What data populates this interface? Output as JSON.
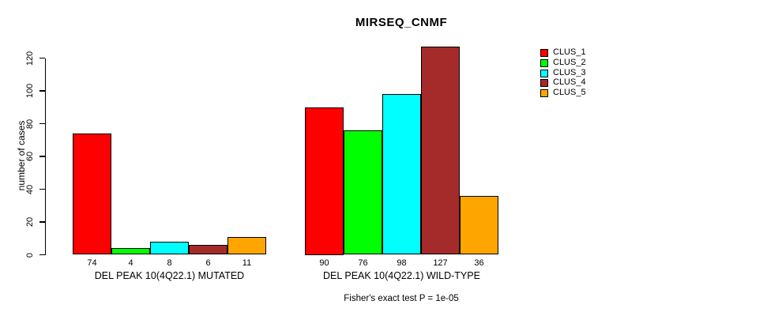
{
  "chart_data": {
    "type": "bar",
    "title": "MIRSEQ_CNMF",
    "ylabel": "number of cases",
    "xlabel": "",
    "ylim": [
      0,
      129
    ],
    "yticks": [
      0,
      20,
      40,
      60,
      80,
      100,
      120
    ],
    "grid": false,
    "legend_position": "top-right",
    "categories": [
      "DEL PEAK 10(4Q22.1) MUTATED",
      "DEL PEAK 10(4Q22.1) WILD-TYPE"
    ],
    "series": [
      {
        "name": "CLUS_1",
        "color": "#FF0000",
        "values": [
          74,
          90
        ]
      },
      {
        "name": "CLUS_2",
        "color": "#00FF00",
        "values": [
          4,
          76
        ]
      },
      {
        "name": "CLUS_3",
        "color": "#00FFFF",
        "values": [
          8,
          98
        ]
      },
      {
        "name": "CLUS_4",
        "color": "#A52A2A",
        "values": [
          6,
          127
        ]
      },
      {
        "name": "CLUS_5",
        "color": "#FFA500",
        "values": [
          11,
          36
        ]
      }
    ],
    "bar_value_labels_shown": true,
    "annotation": "Fisher's exact test P = 1e-05",
    "axis_color": "#000000",
    "bar_border_color": "#000000"
  }
}
